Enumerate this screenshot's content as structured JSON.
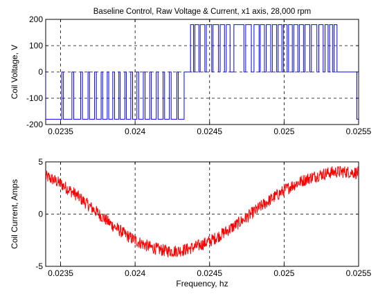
{
  "chart_data": [
    {
      "type": "line",
      "title": "Baseline Control, Raw Voltage & Current, x1 axis, 28,000 rpm",
      "xlabel": "",
      "ylabel": "Coil Voltage, V",
      "xlim": [
        0.0234,
        0.0255
      ],
      "ylim": [
        -200,
        200
      ],
      "xticks": [
        0.0235,
        0.024,
        0.0245,
        0.025,
        0.0255
      ],
      "xtick_labels": [
        "0.0235",
        "0.024",
        "0.0245",
        "0.025",
        "0.0255"
      ],
      "yticks": [
        -200,
        -100,
        0,
        100,
        200
      ],
      "ytick_labels": [
        "-200",
        "-100",
        "0",
        "100",
        "200"
      ],
      "grid": true,
      "series": [
        {
          "color": "#0000ff",
          "levels": [
            -180,
            0,
            180
          ],
          "negative_pulses": [
            [
              0.0234,
              0.023508
            ],
            [
              0.023519,
              0.023576
            ],
            [
              0.023588,
              0.023635
            ],
            [
              0.023647,
              0.023684
            ],
            [
              0.023694,
              0.023728
            ],
            [
              0.02374,
              0.023772
            ],
            [
              0.023782,
              0.023813
            ],
            [
              0.023823,
              0.02385
            ],
            [
              0.023862,
              0.023891
            ],
            [
              0.0239,
              0.023931
            ],
            [
              0.023941,
              0.023971
            ],
            [
              0.023983,
              0.024012
            ],
            [
              0.024024,
              0.024055
            ],
            [
              0.024067,
              0.024098
            ],
            [
              0.024109,
              0.024142
            ],
            [
              0.024154,
              0.024188
            ],
            [
              0.024198,
              0.02423
            ],
            [
              0.024242,
              0.02428
            ],
            [
              0.02429,
              0.024329
            ]
          ],
          "positive_pulses": [
            [
              0.024372,
              0.024392
            ],
            [
              0.024401,
              0.024428
            ],
            [
              0.024437,
              0.024468
            ],
            [
              0.024478,
              0.024514
            ],
            [
              0.024523,
              0.02456
            ],
            [
              0.024571,
              0.0246
            ],
            [
              0.024612,
              0.024637
            ],
            [
              0.024663,
              0.02473
            ],
            [
              0.024742,
              0.02478
            ],
            [
              0.024798,
              0.024832
            ],
            [
              0.02484,
              0.024868
            ],
            [
              0.02488,
              0.02491
            ],
            [
              0.024921,
              0.02495
            ],
            [
              0.02496,
              0.024985
            ],
            [
              0.024995,
              0.02502
            ],
            [
              0.02503,
              0.025055
            ],
            [
              0.025065,
              0.025092
            ],
            [
              0.025102,
              0.02513
            ],
            [
              0.02514,
              0.025172
            ],
            [
              0.025183,
              0.02522
            ],
            [
              0.025233,
              0.025262
            ],
            [
              0.025275,
              0.025295
            ],
            [
              0.025305,
              0.025325
            ],
            [
              0.025335,
              0.025355
            ]
          ],
          "negative_tail": [
            0.025488,
            0.0255
          ]
        }
      ]
    },
    {
      "type": "line",
      "title": "",
      "xlabel": "Frequency, hz",
      "ylabel": "Coil Current, Amps",
      "xlim": [
        0.0234,
        0.0255
      ],
      "ylim": [
        -5,
        5
      ],
      "xticks": [
        0.0235,
        0.024,
        0.0245,
        0.025,
        0.0255
      ],
      "xtick_labels": [
        "0.0235",
        "0.024",
        "0.0245",
        "0.025",
        "0.0255"
      ],
      "yticks": [
        -5,
        0,
        5
      ],
      "ytick_labels": [
        "-5",
        "0",
        "5"
      ],
      "grid": true,
      "series": [
        {
          "color": "#ff0000",
          "x": [
            0.0234,
            0.02345,
            0.0235,
            0.02355,
            0.0236,
            0.02365,
            0.0237,
            0.02375,
            0.0238,
            0.02385,
            0.0239,
            0.02395,
            0.024,
            0.02405,
            0.0241,
            0.02415,
            0.0242,
            0.02425,
            0.0243,
            0.02435,
            0.0244,
            0.02445,
            0.0245,
            0.02455,
            0.0246,
            0.02465,
            0.0247,
            0.02475,
            0.0248,
            0.02485,
            0.0249,
            0.02495,
            0.025,
            0.02505,
            0.0251,
            0.02515,
            0.0252,
            0.02525,
            0.0253,
            0.02535,
            0.0254,
            0.02545,
            0.0255
          ],
          "y": [
            3.6,
            3.3,
            2.9,
            2.4,
            1.9,
            1.3,
            0.7,
            0.1,
            -0.5,
            -1.1,
            -1.6,
            -2.1,
            -2.5,
            -2.85,
            -3.15,
            -3.35,
            -3.5,
            -3.55,
            -3.5,
            -3.35,
            -3.15,
            -2.9,
            -2.6,
            -2.2,
            -1.75,
            -1.3,
            -0.8,
            -0.3,
            0.25,
            0.8,
            1.3,
            1.8,
            2.25,
            2.7,
            3.05,
            3.35,
            3.6,
            3.8,
            3.95,
            4.05,
            4.05,
            4.0,
            3.95
          ],
          "noise_amplitude": 0.6
        }
      ]
    }
  ]
}
